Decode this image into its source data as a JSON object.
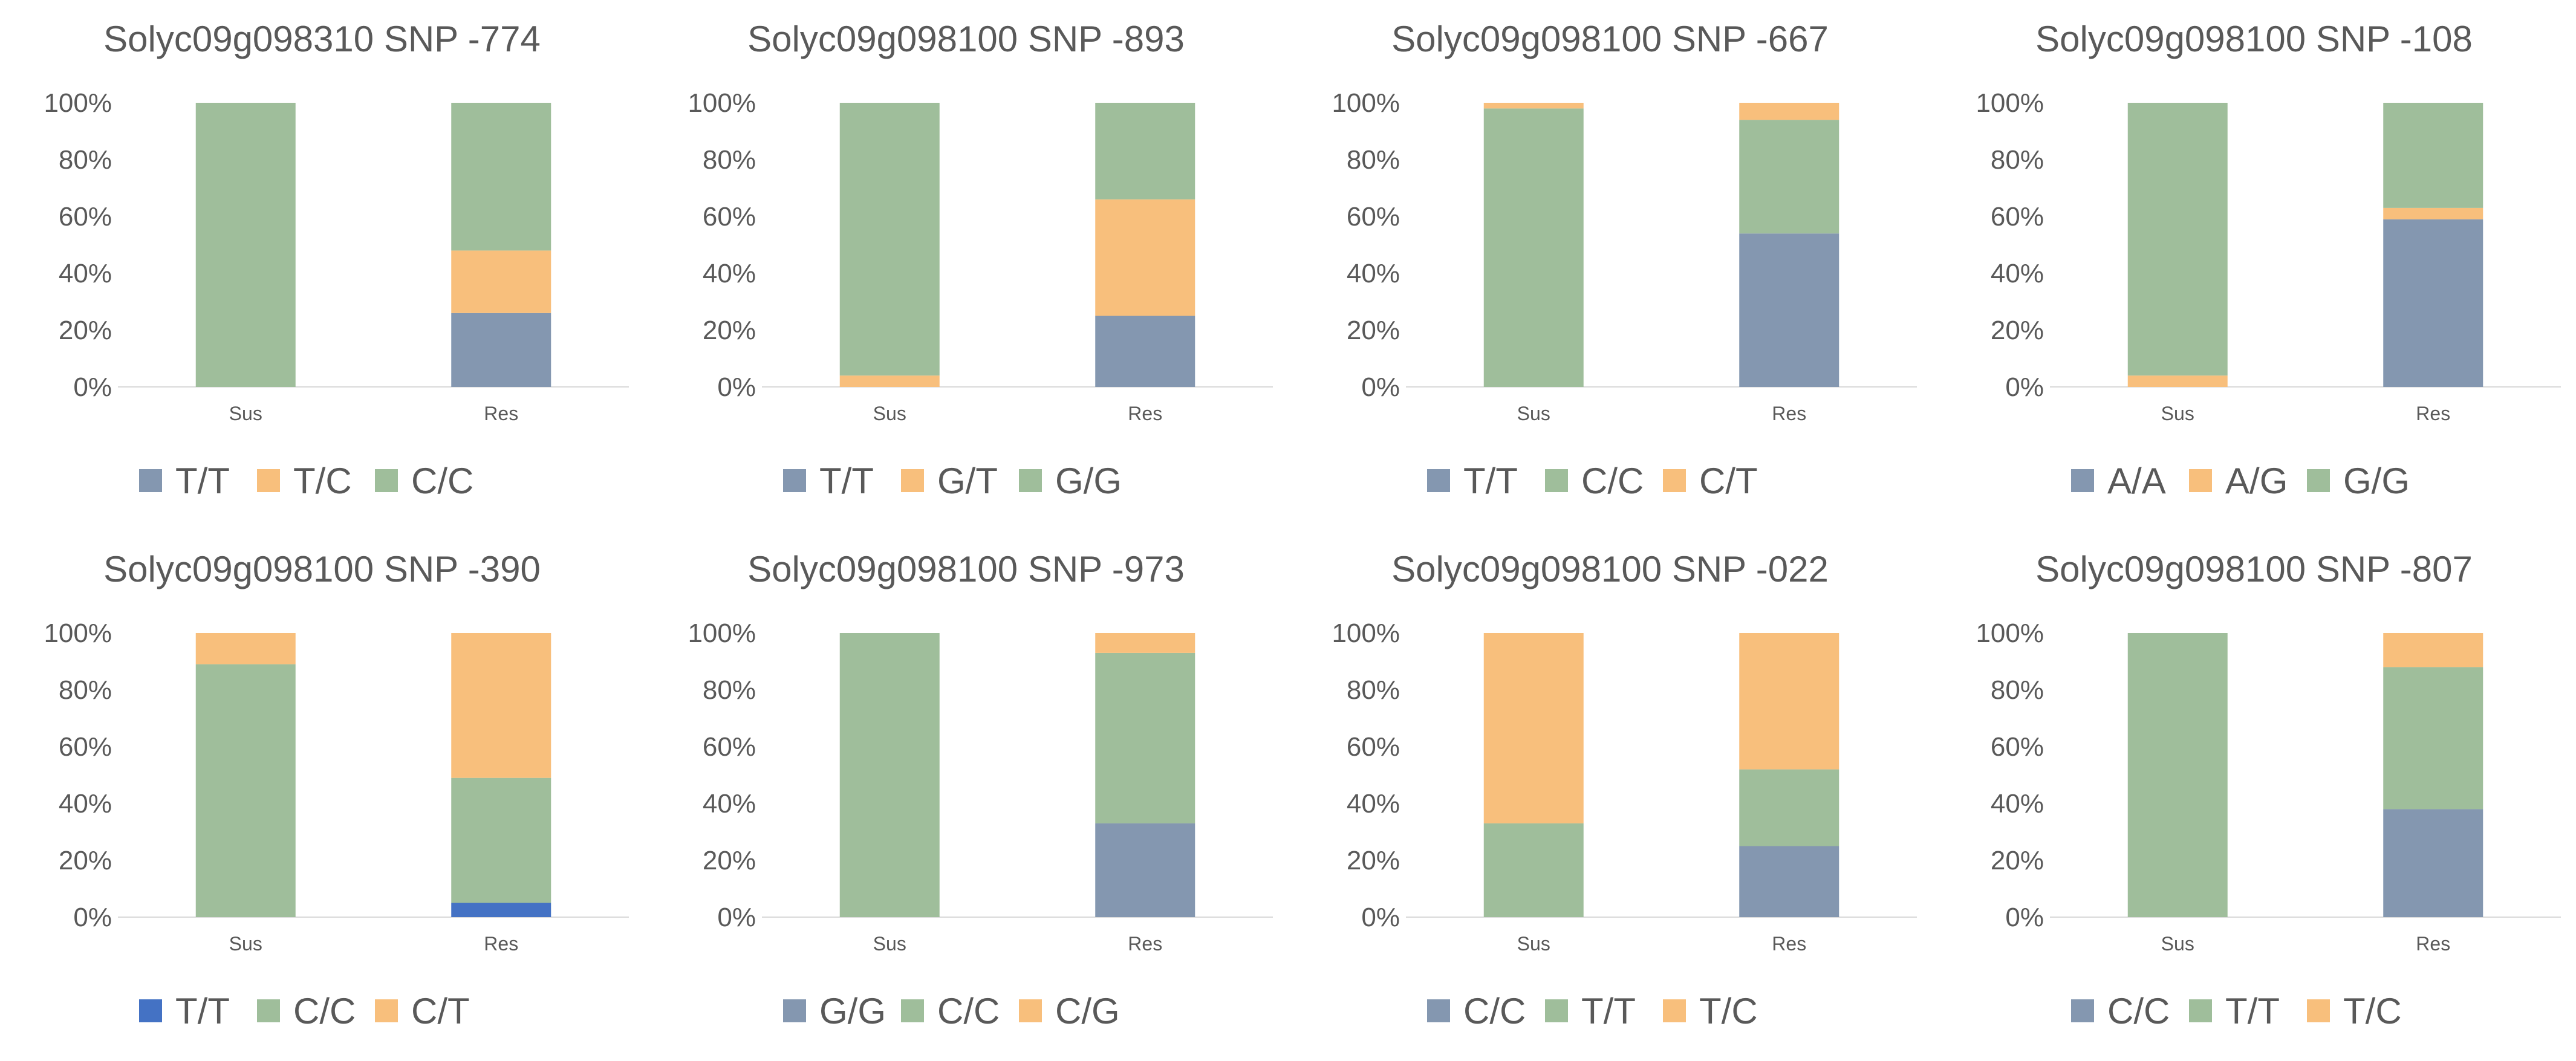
{
  "chart_data": [
    {
      "type": "bar",
      "stacked": true,
      "title": "Solyc09g098310 SNP -774",
      "categories": [
        "Sus",
        "Res"
      ],
      "ylim": [
        0,
        100
      ],
      "yticks": [
        "0%",
        "20%",
        "40%",
        "60%",
        "80%",
        "100%"
      ],
      "legend_position": "bottom",
      "series": [
        {
          "name": "T/T",
          "color": "#8497b0",
          "values": [
            0,
            26
          ]
        },
        {
          "name": "T/C",
          "color": "#f8bf7c",
          "values": [
            0,
            22
          ]
        },
        {
          "name": "C/C",
          "color": "#9fbe9b",
          "values": [
            100,
            52
          ]
        }
      ]
    },
    {
      "type": "bar",
      "stacked": true,
      "title": "Solyc09g098100 SNP -893",
      "categories": [
        "Sus",
        "Res"
      ],
      "ylim": [
        0,
        100
      ],
      "yticks": [
        "0%",
        "20%",
        "40%",
        "60%",
        "80%",
        "100%"
      ],
      "legend_position": "bottom",
      "series": [
        {
          "name": "T/T",
          "color": "#8497b0",
          "values": [
            0,
            25
          ]
        },
        {
          "name": "G/T",
          "color": "#f8bf7c",
          "values": [
            4,
            41
          ]
        },
        {
          "name": "G/G",
          "color": "#9fbe9b",
          "values": [
            96,
            34
          ]
        }
      ]
    },
    {
      "type": "bar",
      "stacked": true,
      "title": "Solyc09g098100 SNP -667",
      "categories": [
        "Sus",
        "Res"
      ],
      "ylim": [
        0,
        100
      ],
      "yticks": [
        "0%",
        "20%",
        "40%",
        "60%",
        "80%",
        "100%"
      ],
      "legend_position": "bottom",
      "series": [
        {
          "name": "T/T",
          "color": "#8497b0",
          "values": [
            0,
            54
          ]
        },
        {
          "name": "C/C",
          "color": "#9fbe9b",
          "values": [
            98,
            40
          ]
        },
        {
          "name": "C/T",
          "color": "#f8bf7c",
          "values": [
            2,
            6
          ]
        }
      ]
    },
    {
      "type": "bar",
      "stacked": true,
      "title": "Solyc09g098100 SNP -108",
      "categories": [
        "Sus",
        "Res"
      ],
      "ylim": [
        0,
        100
      ],
      "yticks": [
        "0%",
        "20%",
        "40%",
        "60%",
        "80%",
        "100%"
      ],
      "legend_position": "bottom",
      "series": [
        {
          "name": "A/A",
          "color": "#8497b0",
          "values": [
            0,
            59
          ]
        },
        {
          "name": "A/G",
          "color": "#f8bf7c",
          "values": [
            4,
            4
          ]
        },
        {
          "name": "G/G",
          "color": "#9fbe9b",
          "values": [
            96,
            37
          ]
        }
      ]
    },
    {
      "type": "bar",
      "stacked": true,
      "title": "Solyc09g098100 SNP -390",
      "categories": [
        "Sus",
        "Res"
      ],
      "ylim": [
        0,
        100
      ],
      "yticks": [
        "0%",
        "20%",
        "40%",
        "60%",
        "80%",
        "100%"
      ],
      "legend_position": "bottom",
      "series": [
        {
          "name": "T/T",
          "color": "#4472c4",
          "values": [
            0,
            5
          ]
        },
        {
          "name": "C/C",
          "color": "#9fbe9b",
          "values": [
            89,
            44
          ]
        },
        {
          "name": "C/T",
          "color": "#f8bf7c",
          "values": [
            11,
            51
          ]
        }
      ]
    },
    {
      "type": "bar",
      "stacked": true,
      "title": "Solyc09g098100 SNP -973",
      "categories": [
        "Sus",
        "Res"
      ],
      "ylim": [
        0,
        100
      ],
      "yticks": [
        "0%",
        "20%",
        "40%",
        "60%",
        "80%",
        "100%"
      ],
      "legend_position": "bottom",
      "series": [
        {
          "name": "G/G",
          "color": "#8497b0",
          "values": [
            0,
            33
          ]
        },
        {
          "name": "C/C",
          "color": "#9fbe9b",
          "values": [
            100,
            60
          ]
        },
        {
          "name": "C/G",
          "color": "#f8bf7c",
          "values": [
            0,
            7
          ]
        }
      ]
    },
    {
      "type": "bar",
      "stacked": true,
      "title": "Solyc09g098100 SNP -022",
      "categories": [
        "Sus",
        "Res"
      ],
      "ylim": [
        0,
        100
      ],
      "yticks": [
        "0%",
        "20%",
        "40%",
        "60%",
        "80%",
        "100%"
      ],
      "legend_position": "bottom",
      "series": [
        {
          "name": "C/C",
          "color": "#8497b0",
          "values": [
            0,
            25
          ]
        },
        {
          "name": "T/T",
          "color": "#9fbe9b",
          "values": [
            33,
            27
          ]
        },
        {
          "name": "T/C",
          "color": "#f8bf7c",
          "values": [
            67,
            48
          ]
        }
      ]
    },
    {
      "type": "bar",
      "stacked": true,
      "title": "Solyc09g098100 SNP -807",
      "categories": [
        "Sus",
        "Res"
      ],
      "ylim": [
        0,
        100
      ],
      "yticks": [
        "0%",
        "20%",
        "40%",
        "60%",
        "80%",
        "100%"
      ],
      "legend_position": "bottom",
      "series": [
        {
          "name": "C/C",
          "color": "#8497b0",
          "values": [
            0,
            38
          ]
        },
        {
          "name": "T/T",
          "color": "#9fbe9b",
          "values": [
            100,
            50
          ]
        },
        {
          "name": "T/C",
          "color": "#f8bf7c",
          "values": [
            0,
            12
          ]
        }
      ]
    }
  ]
}
